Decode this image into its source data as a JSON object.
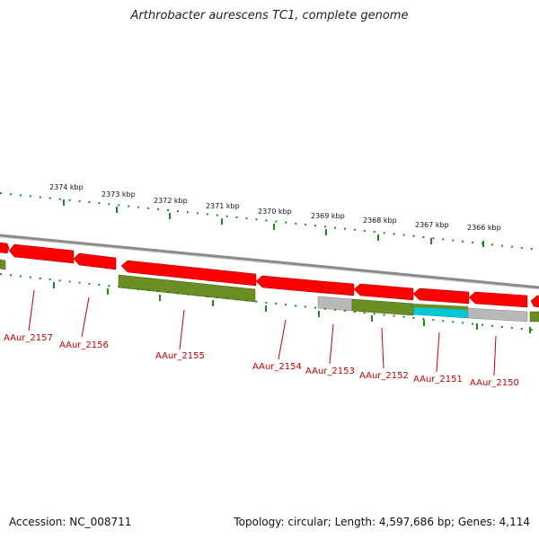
{
  "title": "Arthrobacter aurescens TC1, complete genome",
  "footer": {
    "accession": "Accession: NC_008711",
    "topology": "Topology: circular; Length: 4,597,686 bp; Genes: 4,114"
  },
  "colors": {
    "cds": "#ff0000",
    "gene_green": "#6b8e23",
    "gray": "#b0b0b0",
    "cyan": "#00c8d8",
    "backbone": "#8a8a8a",
    "tick": "#1a8a1a",
    "label": "#c00000"
  },
  "kbp_labels": [
    "2374 kbp",
    "2373 kbp",
    "2372 kbp",
    "2371 kbp",
    "2370 kbp",
    "2369 kbp",
    "2368 kbp",
    "2367 kbp",
    "2366 kbp"
  ],
  "gene_labels": [
    "AAur_2157",
    "AAur_2156",
    "AAur_2155",
    "AAur_2154",
    "AAur_2153",
    "AAur_2152",
    "AAur_2151",
    "AAur_2150"
  ]
}
